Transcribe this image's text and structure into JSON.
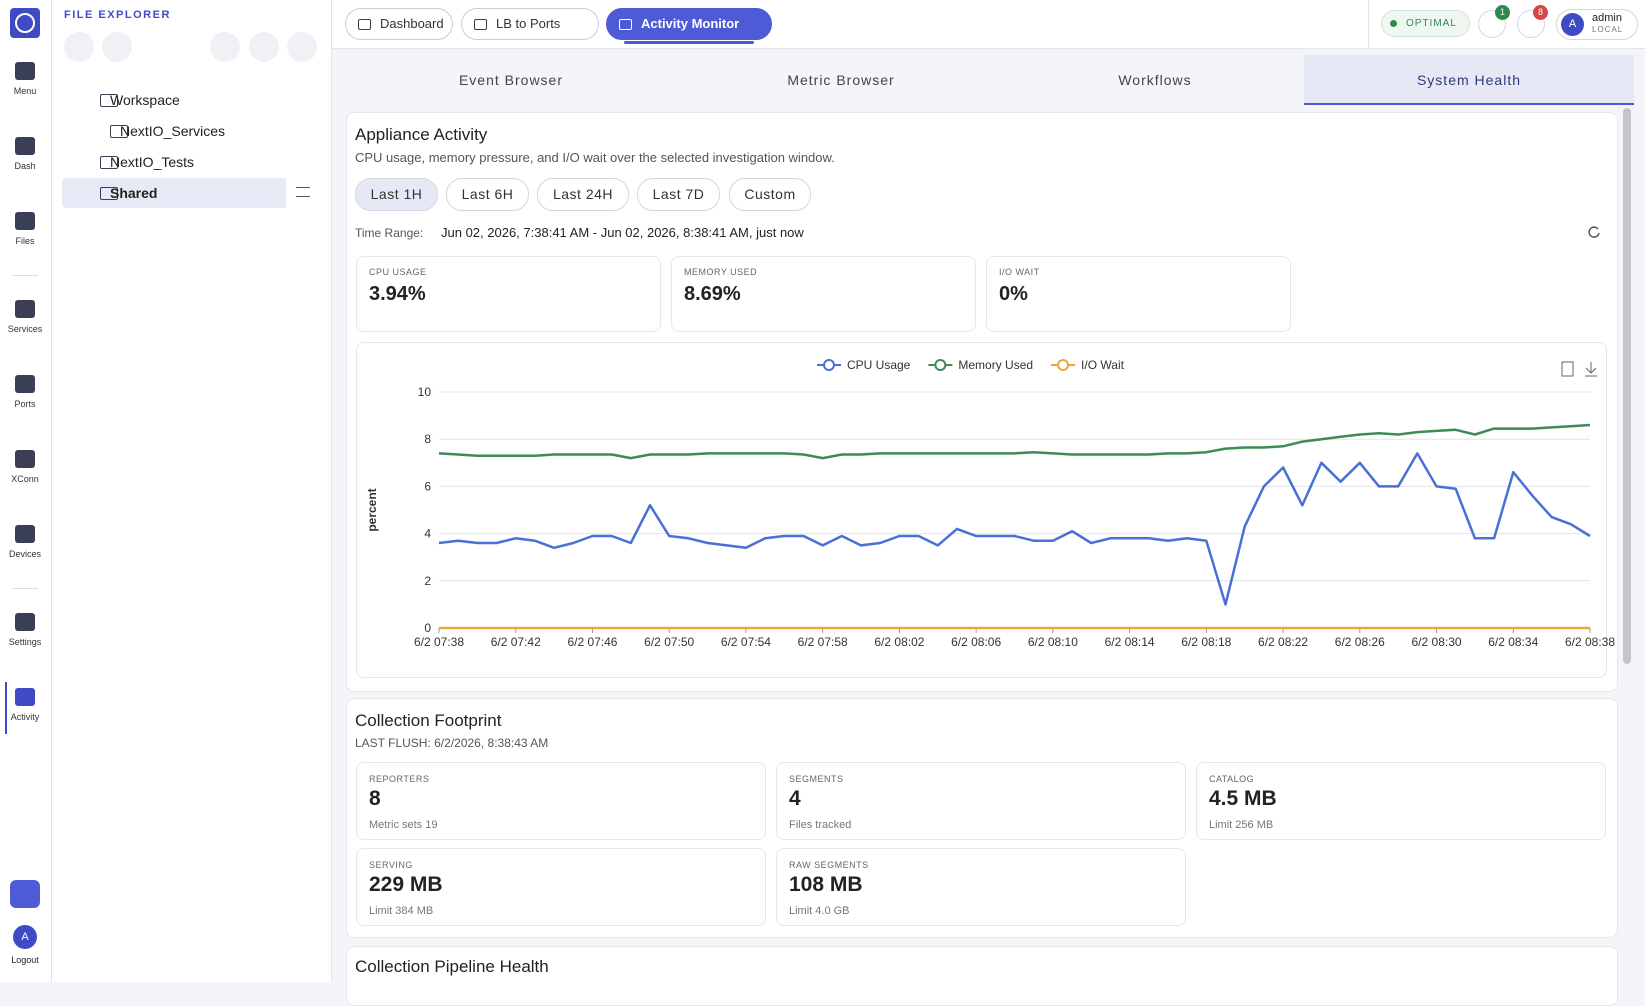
{
  "nav": [
    "Menu",
    "Dash",
    "Files",
    "Services",
    "Ports",
    "XConn",
    "Devices",
    "Settings",
    "Activity"
  ],
  "logout": {
    "avatar": "A",
    "label": "Logout"
  },
  "explorer": {
    "title": "FILE EXPLORER",
    "tree": [
      "Workspace",
      "NextIO_Services",
      "NextIO_Tests",
      "Shared"
    ]
  },
  "tabs": [
    "Dashboard",
    "LB to Ports",
    "Activity Monitor"
  ],
  "status": "OPTIMAL",
  "badges": [
    "1",
    "8"
  ],
  "user": {
    "avatar": "A",
    "name": "admin",
    "realm": "LOCAL"
  },
  "subtabs": [
    "Event Browser",
    "Metric Browser",
    "Workflows",
    "System Health"
  ],
  "activity": {
    "title": "Appliance Activity",
    "subtitle": "CPU usage, memory pressure, and I/O wait over the selected investigation window.",
    "ranges": [
      "Last 1H",
      "Last 6H",
      "Last 24H",
      "Last 7D",
      "Custom"
    ],
    "time_range_label": "Time Range:",
    "time_range": "Jun 02, 2026, 7:38:41 AM - Jun 02, 2026, 8:38:41 AM, just now",
    "stats": [
      {
        "label": "CPU USAGE",
        "value": "3.94%"
      },
      {
        "label": "MEMORY USED",
        "value": "8.69%"
      },
      {
        "label": "I/O WAIT",
        "value": "0%"
      }
    ]
  },
  "chart_data": {
    "type": "line",
    "y_label": "percent",
    "x": [
      "6/2 07:38",
      "6/2 07:39",
      "6/2 07:40",
      "6/2 07:41",
      "6/2 07:42",
      "6/2 07:43",
      "6/2 07:44",
      "6/2 07:45",
      "6/2 07:46",
      "6/2 07:47",
      "6/2 07:48",
      "6/2 07:49",
      "6/2 07:50",
      "6/2 07:51",
      "6/2 07:52",
      "6/2 07:53",
      "6/2 07:54",
      "6/2 07:55",
      "6/2 07:56",
      "6/2 07:57",
      "6/2 07:58",
      "6/2 07:59",
      "6/2 08:00",
      "6/2 08:01",
      "6/2 08:02",
      "6/2 08:03",
      "6/2 08:04",
      "6/2 08:05",
      "6/2 08:06",
      "6/2 08:07",
      "6/2 08:08",
      "6/2 08:09",
      "6/2 08:10",
      "6/2 08:11",
      "6/2 08:12",
      "6/2 08:13",
      "6/2 08:14",
      "6/2 08:15",
      "6/2 08:16",
      "6/2 08:17",
      "6/2 08:18",
      "6/2 08:19",
      "6/2 08:20",
      "6/2 08:21",
      "6/2 08:22",
      "6/2 08:23",
      "6/2 08:24",
      "6/2 08:25",
      "6/2 08:26",
      "6/2 08:27",
      "6/2 08:28",
      "6/2 08:29",
      "6/2 08:30",
      "6/2 08:31",
      "6/2 08:32",
      "6/2 08:33",
      "6/2 08:34",
      "6/2 08:35",
      "6/2 08:36",
      "6/2 08:37",
      "6/2 08:38"
    ],
    "xticks": [
      "6/2 07:38",
      "6/2 07:42",
      "6/2 07:46",
      "6/2 07:50",
      "6/2 07:54",
      "6/2 07:58",
      "6/2 08:02",
      "6/2 08:06",
      "6/2 08:10",
      "6/2 08:14",
      "6/2 08:18",
      "6/2 08:22",
      "6/2 08:26",
      "6/2 08:30",
      "6/2 08:34",
      "6/2 08:38"
    ],
    "ylim": [
      0,
      10
    ],
    "yticks": [
      0,
      2,
      4,
      6,
      8,
      10
    ],
    "grid": true,
    "legend": "top",
    "series": [
      {
        "name": "CPU Usage",
        "color": "#4a6fd6",
        "values": [
          3.6,
          3.7,
          3.6,
          3.6,
          3.8,
          3.7,
          3.4,
          3.6,
          3.9,
          3.9,
          3.6,
          5.2,
          3.9,
          3.8,
          3.6,
          3.5,
          3.4,
          3.8,
          3.9,
          3.9,
          3.5,
          3.9,
          3.5,
          3.6,
          3.9,
          3.9,
          3.5,
          4.2,
          3.9,
          3.9,
          3.9,
          3.7,
          3.7,
          4.1,
          3.6,
          3.8,
          3.8,
          3.8,
          3.7,
          3.8,
          3.7,
          1.0,
          4.3,
          6.0,
          6.8,
          5.2,
          7.0,
          6.2,
          7.0,
          6.0,
          6.0,
          7.4,
          6.0,
          5.9,
          3.8,
          3.8,
          6.6,
          5.6,
          4.7,
          4.4,
          3.9
        ]
      },
      {
        "name": "Memory Used",
        "color": "#3d8b57",
        "values": [
          7.4,
          7.35,
          7.3,
          7.3,
          7.3,
          7.3,
          7.35,
          7.35,
          7.35,
          7.35,
          7.2,
          7.35,
          7.35,
          7.35,
          7.4,
          7.4,
          7.4,
          7.4,
          7.4,
          7.35,
          7.2,
          7.35,
          7.35,
          7.4,
          7.4,
          7.4,
          7.4,
          7.4,
          7.4,
          7.4,
          7.4,
          7.45,
          7.4,
          7.35,
          7.35,
          7.35,
          7.35,
          7.35,
          7.4,
          7.4,
          7.45,
          7.6,
          7.65,
          7.65,
          7.7,
          7.9,
          8.0,
          8.1,
          8.2,
          8.25,
          8.2,
          8.3,
          8.35,
          8.4,
          8.2,
          8.45,
          8.45,
          8.45,
          8.5,
          8.55,
          8.6
        ]
      },
      {
        "name": "I/O Wait",
        "color": "#e8a93a",
        "values": [
          0,
          0,
          0,
          0,
          0,
          0,
          0,
          0,
          0,
          0,
          0,
          0,
          0,
          0,
          0,
          0,
          0,
          0,
          0,
          0,
          0,
          0,
          0,
          0,
          0,
          0,
          0,
          0,
          0,
          0,
          0,
          0,
          0,
          0,
          0,
          0,
          0,
          0,
          0,
          0,
          0,
          0,
          0,
          0,
          0,
          0,
          0,
          0,
          0,
          0,
          0,
          0,
          0,
          0,
          0,
          0,
          0,
          0,
          0,
          0,
          0
        ]
      }
    ]
  },
  "footprint": {
    "title": "Collection Footprint",
    "last_flush": "LAST FLUSH: 6/2/2026, 8:38:43 AM",
    "cards": [
      {
        "label": "REPORTERS",
        "value": "8",
        "note": "Metric sets 19"
      },
      {
        "label": "SEGMENTS",
        "value": "4",
        "note": "Files tracked"
      },
      {
        "label": "CATALOG",
        "value": "4.5 MB",
        "note": "Limit 256 MB"
      },
      {
        "label": "SERVING",
        "value": "229 MB",
        "note": "Limit 384 MB"
      },
      {
        "label": "RAW SEGMENTS",
        "value": "108 MB",
        "note": "Limit 4.0 GB"
      }
    ]
  },
  "pipeline": {
    "title": "Collection Pipeline Health"
  }
}
